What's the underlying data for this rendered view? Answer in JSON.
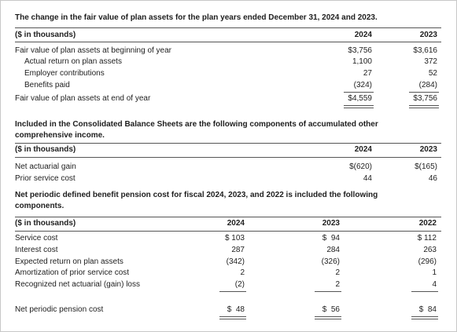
{
  "table1": {
    "caption": "The change in the fair value of plan assets for the plan years ended December 31, 2024 and 2023.",
    "header": [
      "($ in thousands)",
      "2024",
      "2023"
    ],
    "rows": [
      [
        "Fair value of plan assets at beginning of year",
        "$3,756",
        "$3,616"
      ],
      [
        "Actual return on plan assets",
        "1,100",
        "372"
      ],
      [
        "Employer contributions",
        "27",
        "52"
      ],
      [
        "Benefits paid",
        "(324)",
        "(284)"
      ],
      [
        "Fair value of plan assets at end of year",
        "$4,559",
        "$3,756"
      ]
    ]
  },
  "table2": {
    "caption": "Included in the Consolidated Balance Sheets are the following components of accumulated other comprehensive income.",
    "header": [
      "($ in thousands)",
      "2024",
      "2023"
    ],
    "rows": [
      [
        "Net actuarial gain",
        "$(620)",
        "$(165)"
      ],
      [
        "Prior service cost",
        "44",
        "46"
      ]
    ]
  },
  "table3": {
    "caption": "Net periodic defined benefit pension cost for fiscal 2024, 2023, and 2022 is included the following components.",
    "header": [
      "($ in thousands)",
      "2024",
      "2023",
      "2022"
    ],
    "rows": [
      [
        "Service cost",
        "$ 103",
        "$  94",
        "$ 112"
      ],
      [
        "Interest cost",
        "287",
        "284",
        "263"
      ],
      [
        "Expected return on plan assets",
        "(342)",
        "(326)",
        "(296)"
      ],
      [
        "Amortization of prior service cost",
        "2",
        "2",
        "1"
      ],
      [
        "Recognized net actuarial (gain) loss",
        "(2)",
        "2",
        "4"
      ],
      [
        "Net periodic pension cost",
        "$  48",
        "$  56",
        "$  84"
      ]
    ]
  }
}
